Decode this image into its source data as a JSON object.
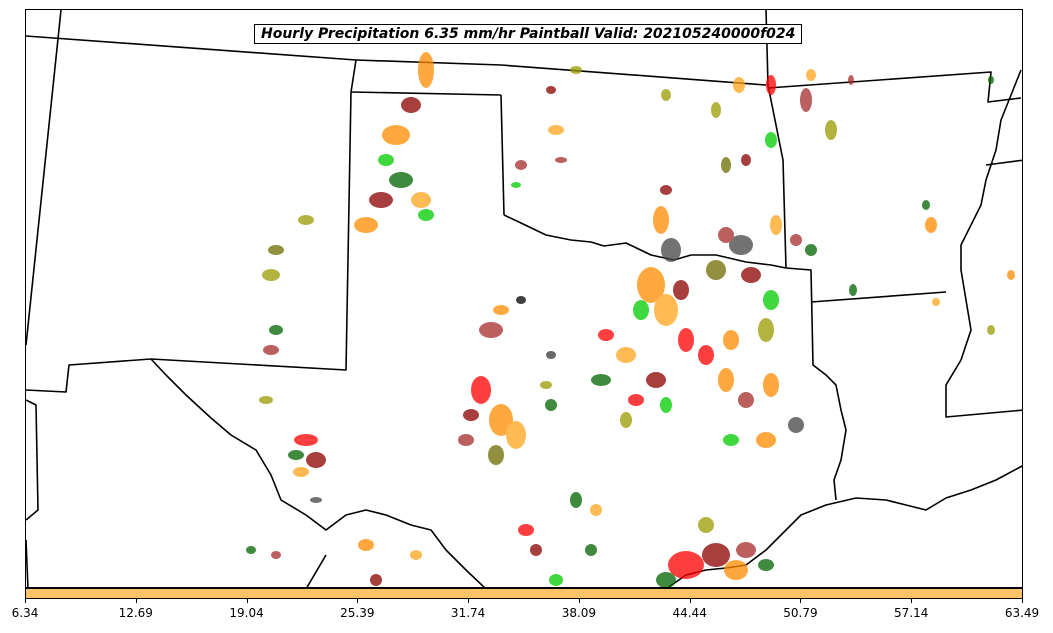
{
  "title": "Hourly Precipitation 6.35 mm/hr Paintball Valid: 202105240000f024",
  "colorbar": {
    "color": "#ffc266",
    "ticks": [
      "6.34",
      "12.69",
      "19.04",
      "25.39",
      "31.74",
      "38.09",
      "44.44",
      "50.79",
      "57.14",
      "63.49"
    ]
  },
  "paintball_colors": [
    "#ff0000",
    "#ff8c00",
    "#ffa31a",
    "#00cc00",
    "#006400",
    "#8b0000",
    "#a52a2a",
    "#9a9a00",
    "#6b6b00",
    "#000000",
    "#444444",
    "#b22222"
  ]
}
